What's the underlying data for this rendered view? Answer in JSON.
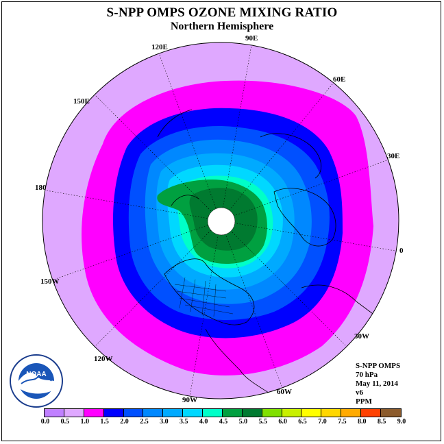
{
  "title": "S-NPP OMPS OZONE MIXING RATIO",
  "subtitle": "Northern Hemisphere",
  "longitude_labels": [
    "90E",
    "60E",
    "30E",
    "0",
    "30W",
    "60W",
    "90W",
    "120W",
    "150W",
    "180",
    "150E",
    "120E"
  ],
  "info": {
    "instrument": "S-NPP OMPS",
    "level": "70 hPa",
    "date": "May 11, 2014",
    "version": "v6",
    "units": "PPM"
  },
  "colorbar": {
    "colors": [
      "#c080ff",
      "#dfa8ff",
      "#ff00ff",
      "#0000ff",
      "#0050ff",
      "#0088ff",
      "#00aaff",
      "#00d8ff",
      "#00ffc8",
      "#00a040",
      "#007a30",
      "#006020",
      "#80e000",
      "#c8f000",
      "#ffff00",
      "#ffd700",
      "#ffaa00",
      "#ff8000",
      "#ff4000",
      "#ff0000",
      "#a04000",
      "#8b5a2b"
    ],
    "tick_labels": [
      "0.0",
      "0.5",
      "1.0",
      "1.5",
      "2.0",
      "2.5",
      "3.0",
      "3.5",
      "4.0",
      "4.5",
      "5.0",
      "5.5",
      "6.0",
      "6.5",
      "7.0",
      "7.5",
      "8.0",
      "8.5",
      "9.0"
    ]
  },
  "logo_text": "NOAA"
}
